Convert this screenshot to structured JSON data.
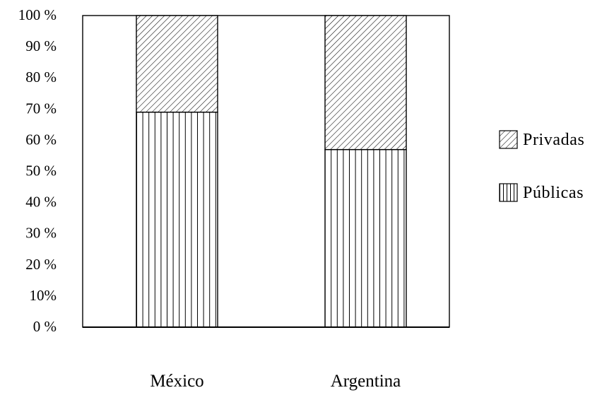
{
  "chart_data": {
    "type": "bar",
    "stacked": true,
    "percent_stacked": true,
    "categories": [
      "México",
      "Argentina"
    ],
    "series": [
      {
        "name": "Públicas",
        "values": [
          69,
          57
        ],
        "pattern": "vertical-lines"
      },
      {
        "name": "Privadas",
        "values": [
          31,
          43
        ],
        "pattern": "diagonal-hatch"
      }
    ],
    "ylim": [
      0,
      100
    ],
    "y_ticks": [
      {
        "value": 0,
        "label": "0 %"
      },
      {
        "value": 10,
        "label": "10%"
      },
      {
        "value": 20,
        "label": "20 %"
      },
      {
        "value": 30,
        "label": "30 %"
      },
      {
        "value": 40,
        "label": "40 %"
      },
      {
        "value": 50,
        "label": "50 %"
      },
      {
        "value": 60,
        "label": "60 %"
      },
      {
        "value": 70,
        "label": "70 %"
      },
      {
        "value": 80,
        "label": "80 %"
      },
      {
        "value": 90,
        "label": "90 %"
      },
      {
        "value": 100,
        "label": "100 %"
      }
    ],
    "legend": {
      "placement": "right",
      "items": [
        {
          "label": "Privadas",
          "pattern": "diagonal-hatch"
        },
        {
          "label": "Públicas",
          "pattern": "vertical-lines"
        }
      ]
    },
    "grid": false,
    "colors": {
      "ink": "#000000",
      "background": "#ffffff"
    }
  }
}
